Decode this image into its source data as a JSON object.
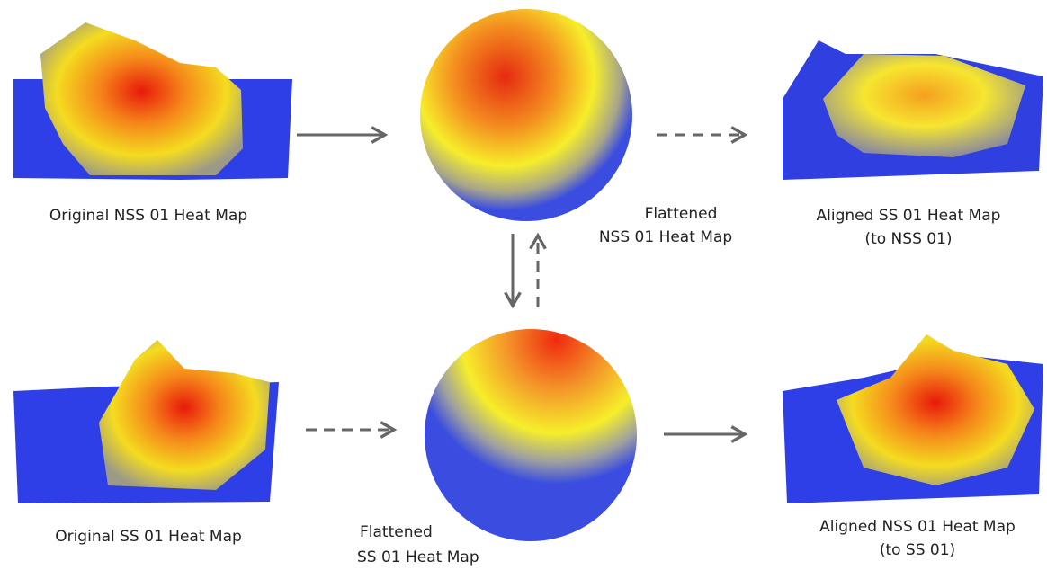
{
  "nodes": [
    {
      "label": [
        "Original NSS 01 Heat Map"
      ]
    },
    {
      "label": [
        "Flattened",
        "NSS 01 Heat Map"
      ]
    },
    {
      "label": [
        "Aligned SS 01 Heat Map",
        "(to NSS 01)"
      ]
    },
    {
      "label": [
        "Original SS 01 Heat Map"
      ]
    },
    {
      "label": [
        "Flattened",
        "SS 01 Heat Map"
      ]
    },
    {
      "label": [
        "Aligned NSS 01 Heat Map",
        "(to SS 01)"
      ]
    }
  ]
}
